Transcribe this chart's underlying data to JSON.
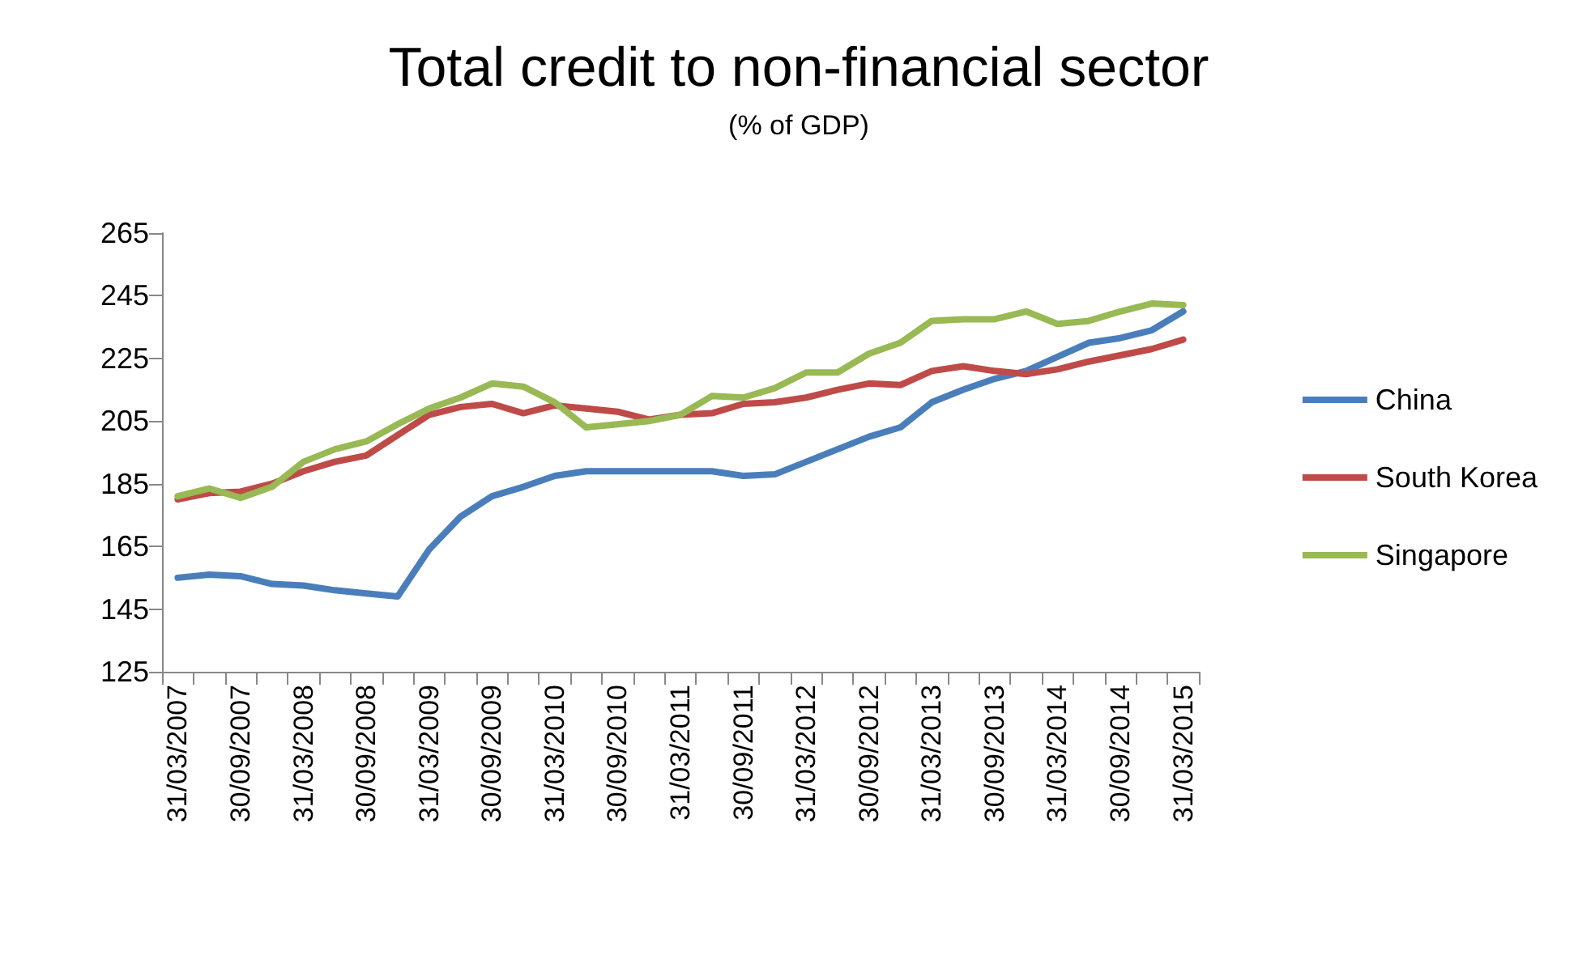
{
  "chart_data": {
    "type": "line",
    "title": "Total credit to non-financial sector",
    "subtitle": "(% of GDP)",
    "categories": [
      "31/03/2007",
      null,
      "30/09/2007",
      null,
      "31/03/2008",
      null,
      "30/09/2008",
      null,
      "31/03/2009",
      null,
      "30/09/2009",
      null,
      "31/03/2010",
      null,
      "30/09/2010",
      null,
      "31/03/2011",
      null,
      "30/09/2011",
      null,
      "31/03/2012",
      null,
      "30/09/2012",
      null,
      "31/03/2013",
      null,
      "30/09/2013",
      null,
      "31/03/2014",
      null,
      "30/09/2014",
      null,
      "31/03/2015"
    ],
    "series": [
      {
        "name": "China",
        "color": "#4a7ebb",
        "values": [
          155,
          156,
          155.5,
          153,
          152.5,
          151,
          150,
          149,
          164,
          174.5,
          181,
          184,
          187.5,
          189,
          189,
          189,
          189,
          189,
          187.5,
          188,
          192,
          196,
          200,
          203,
          211,
          215,
          218.5,
          221,
          225.5,
          230,
          231.5,
          234,
          240
        ]
      },
      {
        "name": "South Korea",
        "color": "#be4b48",
        "values": [
          180,
          182,
          182.5,
          185,
          189,
          192,
          194,
          200.5,
          207,
          209.5,
          210.5,
          207.5,
          210,
          209,
          208,
          205.5,
          207,
          207.5,
          210.5,
          211,
          212.5,
          215,
          217,
          216.5,
          221,
          222.5,
          221,
          220,
          221.5,
          224,
          226,
          228,
          231
        ]
      },
      {
        "name": "Singapore",
        "color": "#98b954",
        "values": [
          181,
          183.5,
          180.5,
          184,
          192,
          196,
          198.5,
          204,
          209,
          212.5,
          217,
          216,
          211,
          203,
          204,
          205,
          207,
          213,
          212.5,
          215.5,
          220.5,
          220.5,
          226.5,
          230,
          237,
          237.5,
          237.5,
          240,
          236,
          237,
          240,
          242.5,
          242
        ]
      }
    ],
    "ylim": [
      125,
      265
    ],
    "yticks": [
      125,
      145,
      165,
      185,
      205,
      225,
      245,
      265
    ],
    "grid": false,
    "legend": "right",
    "marker": "none",
    "line_style": "solid"
  }
}
